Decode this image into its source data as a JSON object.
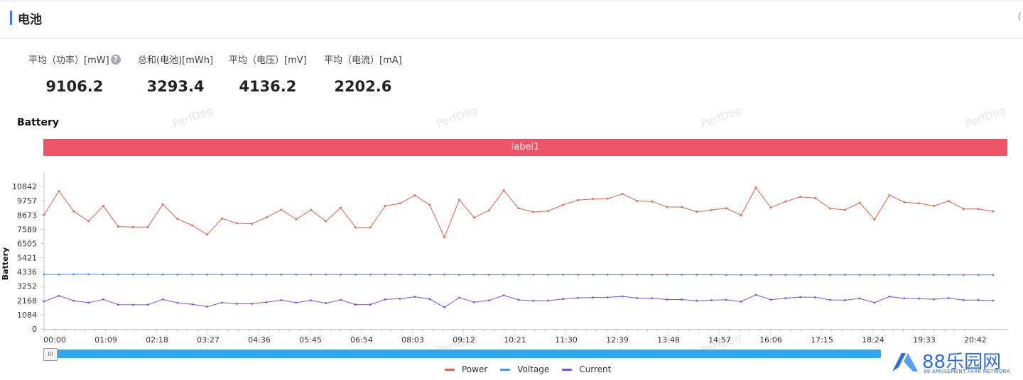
{
  "section": {
    "title": "电池",
    "right_edge_text": "("
  },
  "stats": [
    {
      "label": "平均（功率）[mW]",
      "value": "9106.2",
      "has_help": true
    },
    {
      "label": "总和(电池)[mWh]",
      "value": "3293.4",
      "has_help": false
    },
    {
      "label": "平均（电压）[mV]",
      "value": "4136.2",
      "has_help": false
    },
    {
      "label": "平均（电流）[mA]",
      "value": "2202.6",
      "has_help": false
    }
  ],
  "help_icon_glyph": "?",
  "watermark_text": "PerfDog",
  "label_bar": {
    "text": "label1",
    "color": "#ef5466"
  },
  "zoom_handle_glyph": "III",
  "logo": {
    "text": "88乐园网",
    "subtext": "88 AMUSEMENT PARK NETWORK",
    "color": "#2d6fe0"
  },
  "chart_data": {
    "type": "line",
    "title": "Battery",
    "ylabel": "Battery",
    "xlabel": "",
    "ylim": [
      0,
      11926
    ],
    "yticks": [
      0,
      1084,
      2168,
      3252,
      4336,
      5421,
      6505,
      7589,
      8673,
      9757,
      10842
    ],
    "x_tick_labels": [
      "00:00",
      "01:09",
      "02:18",
      "03:27",
      "04:36",
      "05:45",
      "06:54",
      "08:03",
      "09:12",
      "10:21",
      "11:30",
      "12:39",
      "13:48",
      "14:57",
      "16:06",
      "17:15",
      "18:24",
      "19:33",
      "20:42"
    ],
    "grid": false,
    "legend_position": "bottom-center",
    "series": [
      {
        "name": "Power",
        "color": "#e0604a",
        "values": [
          8690,
          10490,
          8950,
          8200,
          9350,
          7790,
          7760,
          7760,
          9480,
          8370,
          7880,
          7190,
          8400,
          8040,
          8010,
          8490,
          9080,
          8350,
          9060,
          8190,
          9220,
          7730,
          7730,
          9370,
          9550,
          10180,
          9440,
          6980,
          9830,
          8480,
          9030,
          10540,
          9180,
          8900,
          8980,
          9450,
          9810,
          9890,
          9920,
          10280,
          9740,
          9700,
          9280,
          9280,
          8920,
          9060,
          9190,
          8650,
          10760,
          9240,
          9700,
          10060,
          9960,
          9180,
          9060,
          9610,
          8320,
          10190,
          9650,
          9560,
          9370,
          9730,
          9130,
          9130,
          8950
        ]
      },
      {
        "name": "Voltage",
        "color": "#4a8fe8",
        "values": [
          4150,
          4150,
          4160,
          4160,
          4150,
          4150,
          4150,
          4150,
          4150,
          4140,
          4140,
          4140,
          4140,
          4140,
          4140,
          4140,
          4140,
          4140,
          4140,
          4140,
          4140,
          4140,
          4140,
          4140,
          4140,
          4140,
          4130,
          4140,
          4130,
          4130,
          4130,
          4130,
          4130,
          4130,
          4130,
          4130,
          4130,
          4130,
          4130,
          4130,
          4130,
          4130,
          4130,
          4130,
          4130,
          4130,
          4120,
          4120,
          4120,
          4120,
          4120,
          4120,
          4120,
          4120,
          4120,
          4120,
          4120,
          4120,
          4120,
          4120,
          4120,
          4110,
          4110,
          4110,
          4110
        ]
      },
      {
        "name": "Current",
        "color": "#7b4fe0",
        "values": [
          2100,
          2520,
          2150,
          2000,
          2250,
          1850,
          1840,
          1840,
          2250,
          1990,
          1870,
          1700,
          2000,
          1920,
          1920,
          2040,
          2190,
          2000,
          2180,
          1960,
          2220,
          1850,
          1850,
          2250,
          2300,
          2450,
          2270,
          1650,
          2380,
          2040,
          2170,
          2550,
          2210,
          2150,
          2160,
          2280,
          2370,
          2390,
          2400,
          2480,
          2350,
          2340,
          2240,
          2240,
          2150,
          2190,
          2220,
          2080,
          2600,
          2230,
          2340,
          2430,
          2410,
          2210,
          2190,
          2320,
          2000,
          2460,
          2330,
          2310,
          2260,
          2350,
          2200,
          2200,
          2160
        ]
      }
    ]
  }
}
